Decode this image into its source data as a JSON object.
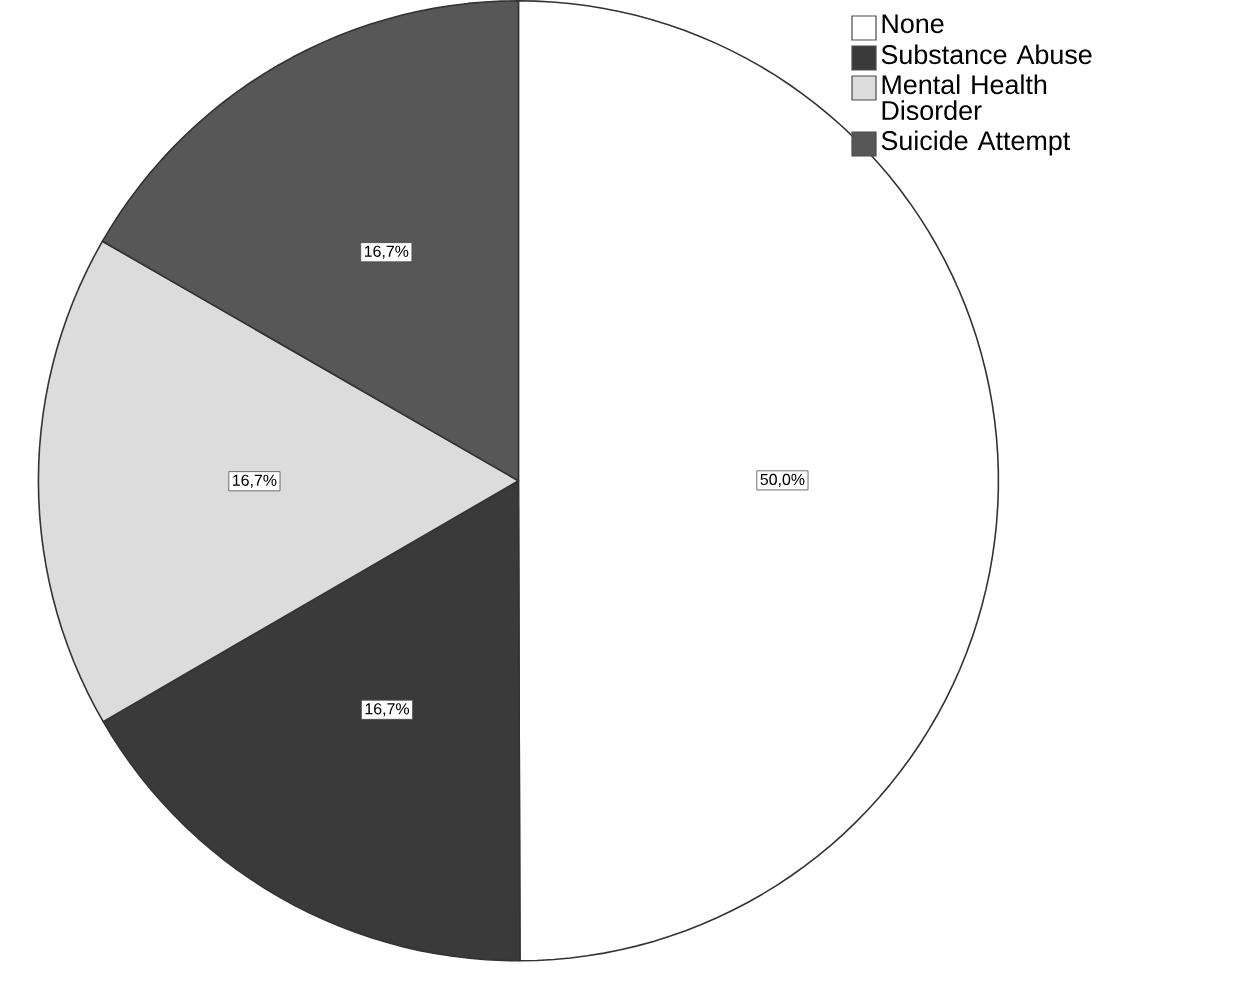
{
  "chart_data": {
    "type": "pie",
    "categories": [
      "None",
      "Substance Abuse",
      "Mental Health Disorder",
      "Suicide Attempt"
    ],
    "values": [
      50.0,
      16.7,
      16.7,
      16.7
    ],
    "colors": [
      "#ffffff",
      "#3a3a3a",
      "#dcdcdc",
      "#575757"
    ],
    "value_labels": [
      "50,0%",
      "16,7%",
      "16,7%",
      "16,7%"
    ],
    "legend": "top right"
  }
}
